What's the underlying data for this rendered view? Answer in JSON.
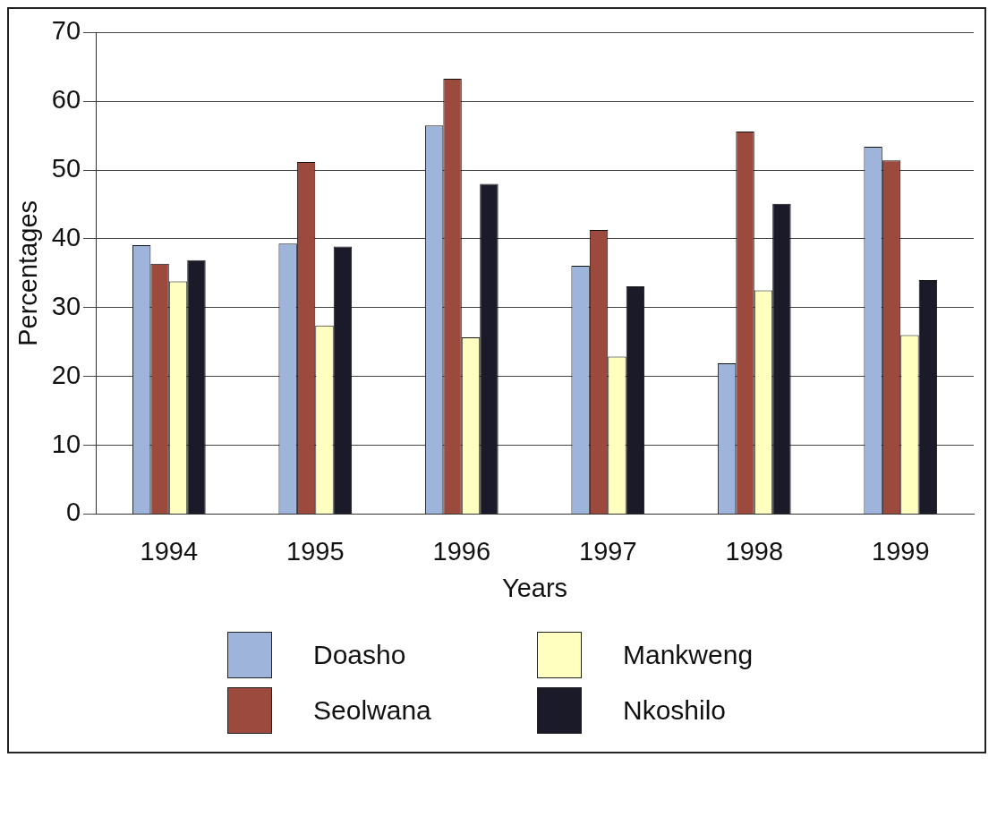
{
  "chart_data": {
    "type": "bar",
    "xlabel": "Years",
    "ylabel": "Percentages",
    "categories": [
      "1994",
      "1995",
      "1996",
      "1997",
      "1998",
      "1999"
    ],
    "series": [
      {
        "name": "Doasho",
        "color": "#9eb4da",
        "values": [
          39.1,
          39.3,
          56.5,
          36.1,
          21.9,
          53.4
        ]
      },
      {
        "name": "Seolwana",
        "color": "#9c4a3e",
        "values": [
          36.4,
          51.2,
          63.3,
          41.3,
          55.6,
          51.4
        ]
      },
      {
        "name": "Mankweng",
        "color": "#ffffc0",
        "values": [
          33.8,
          27.4,
          25.7,
          22.9,
          32.5,
          26
        ]
      },
      {
        "name": "Nkoshilo",
        "color": "#1a1a28",
        "values": [
          36.9,
          38.9,
          48,
          33.1,
          45.1,
          34
        ]
      }
    ],
    "ylim": [
      0,
      70
    ],
    "yticks": [
      0,
      10,
      20,
      30,
      40,
      50,
      60,
      70
    ],
    "grid": "y",
    "legend": "bottom"
  }
}
